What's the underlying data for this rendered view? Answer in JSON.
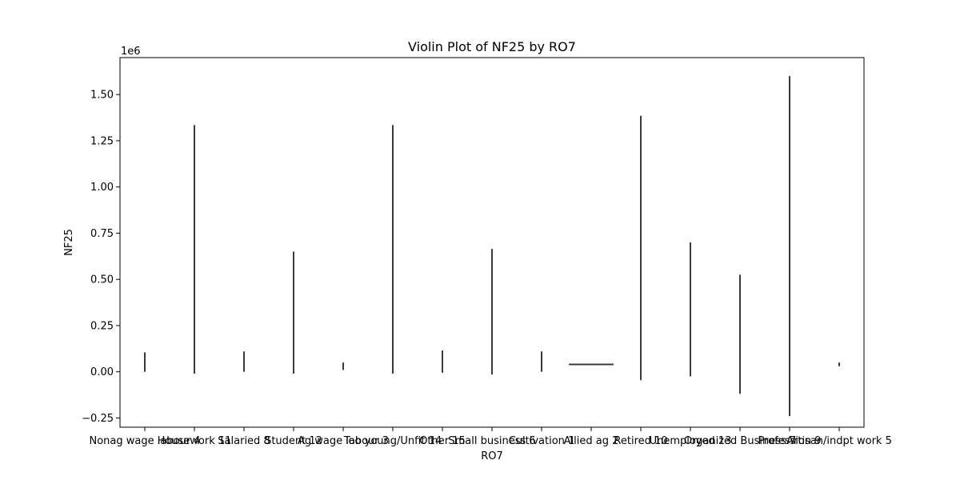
{
  "chart_data": {
    "type": "violin",
    "title": "Violin Plot of NF25 by RO7",
    "xlabel": "RO7",
    "ylabel": "NF25",
    "y_offset_label": "1e6",
    "ylim": [
      -0.3,
      1.7
    ],
    "y_ticks": [
      -0.25,
      0.0,
      0.25,
      0.5,
      0.75,
      1.0,
      1.25,
      1.5
    ],
    "y_tick_labels": [
      "−0.25",
      "0.00",
      "0.25",
      "0.50",
      "0.75",
      "1.00",
      "1.25",
      "1.50"
    ],
    "grid": false,
    "categories": [
      "Nonag wage labour 4",
      "Housework 11",
      "Salaried 8",
      "Student 12",
      "Ag wage labour 3",
      "Too young/Unfit 14",
      "Other 15",
      "Small business 6",
      "Cultivation 1",
      "Allied ag 2",
      "Retired 10",
      "Unemployed 13",
      "Organized Business 7",
      "Profession 9",
      "Artisan/indpt work 5"
    ],
    "ranges": [
      {
        "category": "Nonag wage labour 4",
        "min": 0.0,
        "max": 0.105
      },
      {
        "category": "Housework 11",
        "min": -0.01,
        "max": 1.335
      },
      {
        "category": "Salaried 8",
        "min": 0.0,
        "max": 0.11
      },
      {
        "category": "Student 12",
        "min": -0.01,
        "max": 0.65
      },
      {
        "category": "Ag wage labour 3",
        "min": 0.01,
        "max": 0.05
      },
      {
        "category": "Too young/Unfit 14",
        "min": -0.01,
        "max": 1.335
      },
      {
        "category": "Other 15",
        "min": -0.005,
        "max": 0.115
      },
      {
        "category": "Small business 6",
        "min": -0.015,
        "max": 0.665
      },
      {
        "category": "Cultivation 1",
        "min": 0.0,
        "max": 0.11
      },
      {
        "category": "Allied ag 2",
        "min": 0.04,
        "max": 0.04,
        "width": 0.9
      },
      {
        "category": "Retired 10",
        "min": -0.045,
        "max": 1.385
      },
      {
        "category": "Unemployed 13",
        "min": -0.025,
        "max": 0.7
      },
      {
        "category": "Organized Business 7",
        "min": -0.12,
        "max": 0.525
      },
      {
        "category": "Profession 9",
        "min": -0.24,
        "max": 1.6
      },
      {
        "category": "Artisan/indpt work 5",
        "min": 0.03,
        "max": 0.05
      }
    ],
    "line_color": "#3a3a3a"
  }
}
